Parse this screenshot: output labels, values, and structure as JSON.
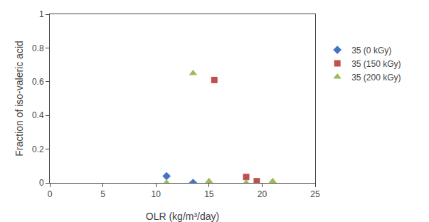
{
  "chart_data": {
    "type": "scatter",
    "xlabel": "OLR (kg/m³/day)",
    "ylabel": "Fraction of iso-valeric acid",
    "xlim": [
      0,
      25
    ],
    "ylim": [
      0,
      1
    ],
    "xticks": [
      0,
      5,
      10,
      15,
      20,
      25
    ],
    "yticks": [
      0,
      0.2,
      0.4,
      0.6,
      0.8,
      1
    ],
    "grid": false,
    "legend": "right",
    "series": [
      {
        "name": "35 (0 kGy)",
        "color": "#4472C4",
        "marker": "diamond",
        "x": [
          11.0,
          13.5
        ],
        "values": [
          0.04,
          0.0
        ]
      },
      {
        "name": "35 (150 kGy)",
        "color": "#C0504D",
        "marker": "square",
        "x": [
          15.5,
          18.5,
          19.5
        ],
        "values": [
          0.61,
          0.035,
          0.01
        ]
      },
      {
        "name": "35 (200 kGy)",
        "color": "#9BBB59",
        "marker": "triangle-up",
        "x": [
          11.0,
          13.5,
          15.0,
          18.5,
          21.0
        ],
        "values": [
          0.0,
          0.65,
          0.01,
          0.0,
          0.01
        ]
      }
    ]
  }
}
